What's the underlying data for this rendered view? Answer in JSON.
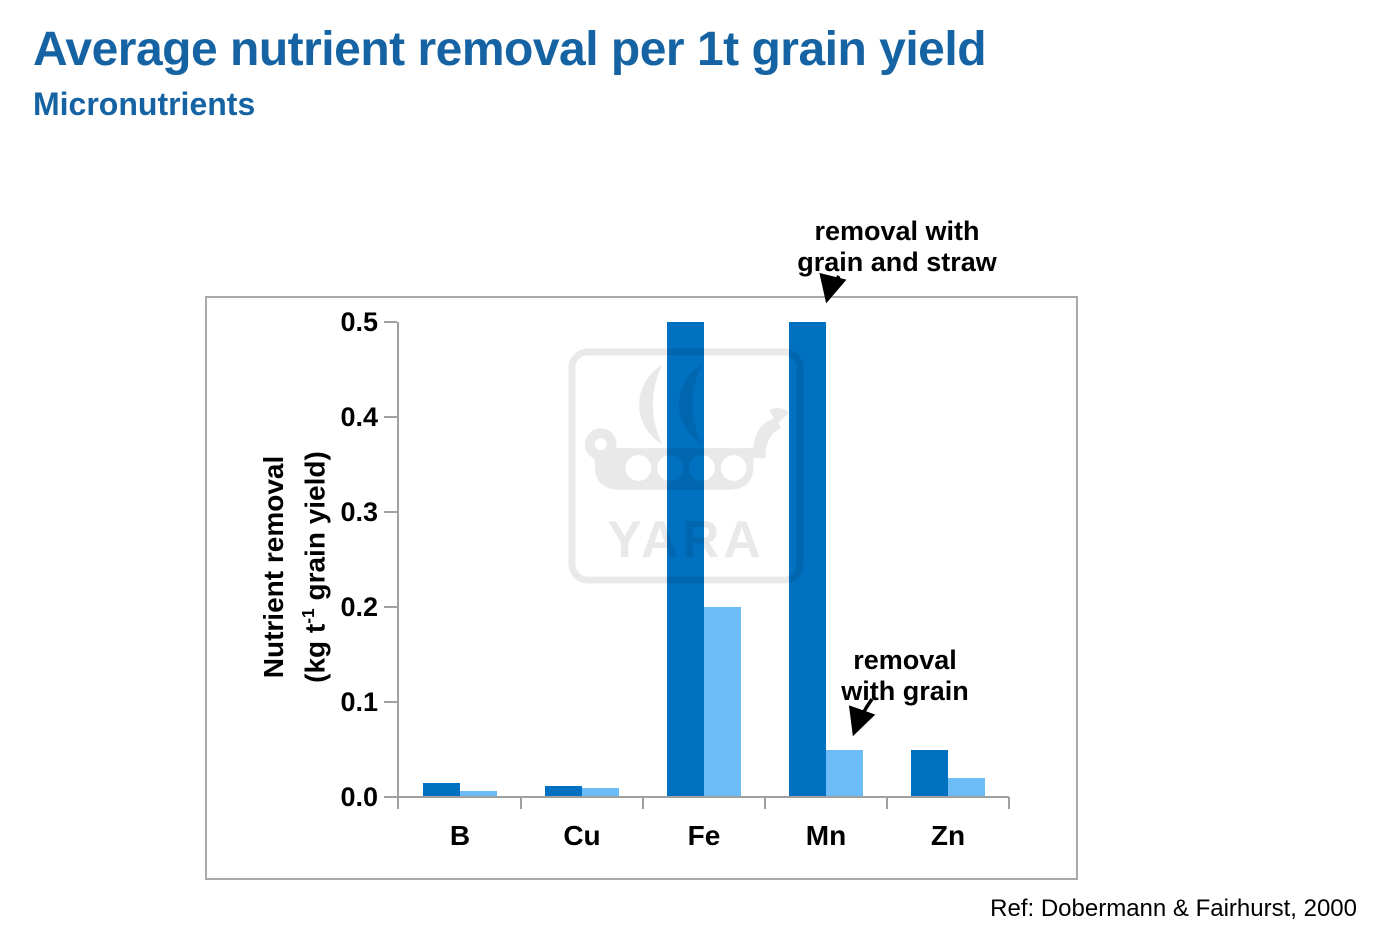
{
  "slide": {
    "title": "Average nutrient removal per 1t grain yield",
    "subtitle": "Micronutrients",
    "title_color": "#1563A3",
    "reference": "Ref: Dobermann & Fairhurst, 2000"
  },
  "chart_data": {
    "type": "bar",
    "title": "",
    "categories": [
      "B",
      "Cu",
      "Fe",
      "Mn",
      "Zn"
    ],
    "series": [
      {
        "name": "removal with grain and straw",
        "color": "#0070C0",
        "values": [
          0.015,
          0.012,
          0.5,
          0.5,
          0.05
        ]
      },
      {
        "name": "removal with grain",
        "color": "#6CBDF7",
        "values": [
          0.006,
          0.009,
          0.2,
          0.05,
          0.02
        ]
      }
    ],
    "ylabel_line1": "Nutrient removal",
    "ylabel_line2_pre": "(kg t",
    "ylabel_line2_sup": "-1",
    "ylabel_line2_post": " grain yield)",
    "xlabel": "",
    "ylim": [
      0,
      0.5
    ],
    "yticks": [
      "0.0",
      "0.1",
      "0.2",
      "0.3",
      "0.4",
      "0.5"
    ],
    "grid": false,
    "legend_position": "none",
    "annotations": [
      {
        "line1": "removal with",
        "line2": "grain and straw",
        "points_to": "Mn removal-with-grain-and-straw bar"
      },
      {
        "line1": "removal",
        "line2": "with grain",
        "points_to": "Mn removal-with-grain bar"
      }
    ],
    "watermark_text": "YARA",
    "axis_color": "#A0A0A0"
  }
}
